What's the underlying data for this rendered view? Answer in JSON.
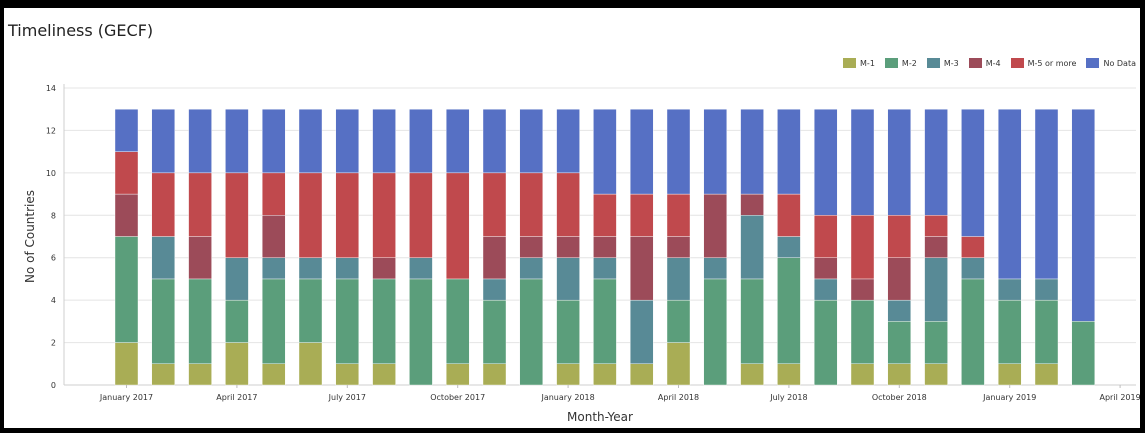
{
  "chart_data": {
    "type": "bar",
    "stacked": true,
    "title": "Timeliness (GECF)",
    "xlabel": "Month-Year",
    "ylabel": "No of Countries",
    "ylim": [
      0,
      14
    ],
    "yticks": [
      "0",
      "2",
      "4",
      "6",
      "8",
      "10",
      "12",
      "14"
    ],
    "grid": true,
    "legend_position": "top-right",
    "x_tick_labels": [
      "January 2017",
      "April 2017",
      "July 2017",
      "October 2017",
      "January 2018",
      "April 2018",
      "July 2018",
      "October 2018",
      "January 2019",
      "April 2019"
    ],
    "categories": [
      "Jan 2017",
      "Feb 2017",
      "Mar 2017",
      "Apr 2017",
      "May 2017",
      "Jun 2017",
      "Jul 2017",
      "Aug 2017",
      "Sep 2017",
      "Oct 2017",
      "Nov 2017",
      "Dec 2017",
      "Jan 2018",
      "Feb 2018",
      "Mar 2018",
      "Apr 2018",
      "May 2018",
      "Jun 2018",
      "Jul 2018",
      "Aug 2018",
      "Sep 2018",
      "Oct 2018",
      "Nov 2018",
      "Dec 2018",
      "Jan 2019",
      "Feb 2019",
      "Mar 2019"
    ],
    "series": [
      {
        "name": "M-1",
        "color": "#a9ad55",
        "values": [
          2,
          1,
          1,
          2,
          1,
          2,
          1,
          1,
          0,
          1,
          1,
          0,
          1,
          1,
          1,
          2,
          0,
          1,
          1,
          0,
          1,
          1,
          1,
          0,
          1,
          1,
          0
        ]
      },
      {
        "name": "M-2",
        "color": "#5b9e7b",
        "values": [
          5,
          4,
          4,
          2,
          4,
          3,
          4,
          4,
          5,
          4,
          3,
          5,
          3,
          4,
          0,
          2,
          5,
          4,
          5,
          4,
          3,
          2,
          2,
          5,
          3,
          3,
          3
        ]
      },
      {
        "name": "M-3",
        "color": "#588a96",
        "values": [
          0,
          2,
          0,
          2,
          1,
          1,
          1,
          0,
          1,
          0,
          1,
          1,
          2,
          1,
          3,
          2,
          1,
          3,
          1,
          1,
          0,
          1,
          3,
          1,
          1,
          1,
          0
        ]
      },
      {
        "name": "M-4",
        "color": "#9c4b59",
        "values": [
          2,
          0,
          2,
          0,
          2,
          0,
          0,
          1,
          0,
          0,
          2,
          1,
          1,
          1,
          3,
          1,
          3,
          1,
          0,
          1,
          1,
          2,
          1,
          0,
          0,
          0,
          0
        ]
      },
      {
        "name": "M-5 or more",
        "color": "#c0494d",
        "values": [
          2,
          3,
          3,
          4,
          2,
          4,
          4,
          4,
          4,
          5,
          3,
          3,
          3,
          2,
          2,
          2,
          0,
          0,
          2,
          2,
          3,
          2,
          1,
          1,
          0,
          0,
          0
        ]
      },
      {
        "name": "No Data",
        "color": "#5670c4",
        "values": [
          2,
          3,
          3,
          3,
          3,
          3,
          3,
          3,
          3,
          3,
          3,
          3,
          3,
          4,
          4,
          4,
          4,
          4,
          4,
          5,
          5,
          5,
          5,
          6,
          8,
          8,
          10
        ]
      }
    ]
  }
}
